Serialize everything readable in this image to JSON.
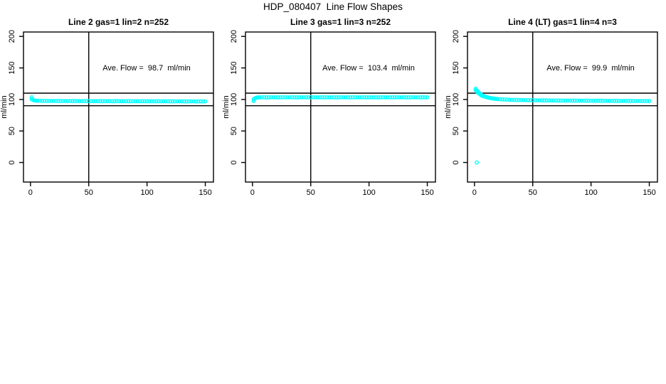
{
  "page": {
    "title": "HDP_080407  Line Flow Shapes"
  },
  "colors": {
    "series": "#00ffff",
    "axis": "#000000",
    "background": "#ffffff"
  },
  "chart_data": [
    {
      "type": "scatter",
      "title": "Line 2 gas=1 lin=2 n=252",
      "annotation": "Ave. Flow =  98.7  ml/min",
      "ave_flow_ml_min": 98.7,
      "n": 252,
      "ylabel": "ml/min",
      "xticks": [
        0,
        50,
        100,
        150
      ],
      "yticks": [
        0,
        50,
        100,
        150,
        200
      ],
      "xlim": [
        -6,
        157
      ],
      "ylim": [
        -31,
        207
      ],
      "ref_hlines": [
        90,
        110
      ],
      "ref_vlines": [
        50
      ],
      "grid": false,
      "points": [
        [
          1,
          103.5
        ],
        [
          1,
          100.5
        ],
        [
          2,
          99.5
        ],
        [
          3,
          98.6
        ],
        [
          4,
          98.3
        ],
        [
          5,
          98.1
        ],
        [
          6,
          98.0
        ],
        [
          8,
          97.9
        ],
        [
          10,
          97.8
        ],
        [
          12,
          97.7
        ],
        [
          14,
          97.8
        ],
        [
          16,
          97.6
        ],
        [
          18,
          97.7
        ],
        [
          20,
          97.6
        ],
        [
          22,
          97.7
        ],
        [
          24,
          97.5
        ],
        [
          26,
          97.6
        ],
        [
          28,
          97.5
        ],
        [
          30,
          97.6
        ],
        [
          32,
          97.5
        ],
        [
          34,
          97.6
        ],
        [
          36,
          97.4
        ],
        [
          38,
          97.5
        ],
        [
          40,
          97.6
        ],
        [
          42,
          97.4
        ],
        [
          44,
          97.5
        ],
        [
          46,
          97.4
        ],
        [
          48,
          97.5
        ],
        [
          50,
          97.4
        ],
        [
          52,
          97.5
        ],
        [
          54,
          97.3
        ],
        [
          56,
          97.4
        ],
        [
          58,
          97.3
        ],
        [
          60,
          97.4
        ],
        [
          62,
          97.3
        ],
        [
          64,
          97.4
        ],
        [
          66,
          97.3
        ],
        [
          68,
          97.4
        ],
        [
          70,
          97.2
        ],
        [
          72,
          97.3
        ],
        [
          74,
          97.4
        ],
        [
          76,
          97.2
        ],
        [
          78,
          97.3
        ],
        [
          80,
          97.2
        ],
        [
          82,
          97.3
        ],
        [
          84,
          97.2
        ],
        [
          86,
          97.3
        ],
        [
          88,
          97.1
        ],
        [
          90,
          97.2
        ],
        [
          92,
          97.3
        ],
        [
          94,
          97.1
        ],
        [
          96,
          97.2
        ],
        [
          98,
          97.1
        ],
        [
          100,
          97.2
        ],
        [
          102,
          97.1
        ],
        [
          104,
          97.2
        ],
        [
          106,
          97.0
        ],
        [
          108,
          97.1
        ],
        [
          110,
          97.2
        ],
        [
          112,
          97.0
        ],
        [
          114,
          97.1
        ],
        [
          116,
          97.0
        ],
        [
          118,
          97.1
        ],
        [
          120,
          97.0
        ],
        [
          122,
          97.1
        ],
        [
          124,
          96.9
        ],
        [
          126,
          97.0
        ],
        [
          128,
          97.1
        ],
        [
          130,
          96.9
        ],
        [
          132,
          97.0
        ],
        [
          134,
          96.9
        ],
        [
          136,
          97.0
        ],
        [
          138,
          96.9
        ],
        [
          140,
          97.0
        ],
        [
          142,
          96.8
        ],
        [
          144,
          96.9
        ],
        [
          146,
          97.0
        ],
        [
          148,
          96.9
        ],
        [
          150,
          96.9
        ]
      ]
    },
    {
      "type": "scatter",
      "title": "Line 3 gas=1 lin=3 n=252",
      "annotation": "Ave. Flow =  103.4  ml/min",
      "ave_flow_ml_min": 103.4,
      "n": 252,
      "ylabel": "ml/min",
      "xticks": [
        0,
        50,
        100,
        150
      ],
      "yticks": [
        0,
        50,
        100,
        150,
        200
      ],
      "xlim": [
        -6,
        157
      ],
      "ylim": [
        -31,
        207
      ],
      "ref_hlines": [
        90,
        110
      ],
      "ref_vlines": [
        50
      ],
      "grid": false,
      "points": [
        [
          1,
          97.5
        ],
        [
          1,
          100.2
        ],
        [
          2,
          101.6
        ],
        [
          3,
          102.6
        ],
        [
          4,
          103.0
        ],
        [
          5,
          103.2
        ],
        [
          6,
          103.3
        ],
        [
          8,
          103.3
        ],
        [
          10,
          103.4
        ],
        [
          12,
          103.3
        ],
        [
          14,
          103.4
        ],
        [
          16,
          103.3
        ],
        [
          18,
          103.4
        ],
        [
          20,
          103.3
        ],
        [
          22,
          103.4
        ],
        [
          24,
          103.3
        ],
        [
          26,
          103.4
        ],
        [
          28,
          103.3
        ],
        [
          30,
          103.4
        ],
        [
          32,
          103.3
        ],
        [
          34,
          103.4
        ],
        [
          36,
          103.3
        ],
        [
          38,
          103.4
        ],
        [
          40,
          103.3
        ],
        [
          42,
          103.4
        ],
        [
          44,
          103.3
        ],
        [
          46,
          103.4
        ],
        [
          48,
          103.3
        ],
        [
          50,
          103.4
        ],
        [
          52,
          103.3
        ],
        [
          54,
          103.4
        ],
        [
          56,
          103.3
        ],
        [
          58,
          103.4
        ],
        [
          60,
          103.3
        ],
        [
          62,
          103.4
        ],
        [
          64,
          103.3
        ],
        [
          66,
          103.4
        ],
        [
          68,
          103.3
        ],
        [
          70,
          103.4
        ],
        [
          72,
          103.3
        ],
        [
          74,
          103.4
        ],
        [
          76,
          103.3
        ],
        [
          78,
          103.4
        ],
        [
          80,
          103.3
        ],
        [
          82,
          103.4
        ],
        [
          84,
          103.3
        ],
        [
          86,
          103.4
        ],
        [
          88,
          103.3
        ],
        [
          90,
          103.4
        ],
        [
          92,
          103.3
        ],
        [
          94,
          103.4
        ],
        [
          96,
          103.3
        ],
        [
          98,
          103.4
        ],
        [
          100,
          103.3
        ],
        [
          102,
          103.4
        ],
        [
          104,
          103.3
        ],
        [
          106,
          103.4
        ],
        [
          108,
          103.3
        ],
        [
          110,
          103.4
        ],
        [
          112,
          103.3
        ],
        [
          114,
          103.4
        ],
        [
          116,
          103.3
        ],
        [
          118,
          103.4
        ],
        [
          120,
          103.3
        ],
        [
          122,
          103.4
        ],
        [
          124,
          103.3
        ],
        [
          126,
          103.4
        ],
        [
          128,
          103.3
        ],
        [
          130,
          103.4
        ],
        [
          132,
          103.3
        ],
        [
          134,
          103.4
        ],
        [
          136,
          103.3
        ],
        [
          138,
          103.4
        ],
        [
          140,
          103.3
        ],
        [
          142,
          103.4
        ],
        [
          144,
          103.3
        ],
        [
          146,
          103.4
        ],
        [
          148,
          103.3
        ],
        [
          150,
          103.4
        ]
      ]
    },
    {
      "type": "scatter",
      "title": "Line 4 (LT) gas=1 lin=4 n=3",
      "annotation": "Ave. Flow =  99.9  ml/min",
      "ave_flow_ml_min": 99.9,
      "n": 3,
      "ylabel": "ml/min",
      "xticks": [
        0,
        50,
        100,
        150
      ],
      "yticks": [
        0,
        50,
        100,
        150,
        200
      ],
      "xlim": [
        -6,
        157
      ],
      "ylim": [
        -31,
        207
      ],
      "ref_hlines": [
        90,
        110
      ],
      "ref_vlines": [
        50
      ],
      "grid": false,
      "points": [
        [
          2,
          0
        ],
        [
          1,
          117
        ],
        [
          1,
          115
        ],
        [
          2,
          114.5
        ],
        [
          2,
          112.5
        ],
        [
          3,
          112.5
        ],
        [
          3,
          110.8
        ],
        [
          4,
          110.5
        ],
        [
          4,
          109.2
        ],
        [
          5,
          108.8
        ],
        [
          5,
          107.6
        ],
        [
          6,
          107.5
        ],
        [
          6,
          106.4
        ],
        [
          7,
          106.3
        ],
        [
          7,
          105.4
        ],
        [
          8,
          105.3
        ],
        [
          9,
          104.5
        ],
        [
          10,
          103.9
        ],
        [
          11,
          103.4
        ],
        [
          12,
          102.9
        ],
        [
          13,
          102.5
        ],
        [
          14,
          102.1
        ],
        [
          15,
          101.8
        ],
        [
          16,
          101.5
        ],
        [
          17,
          101.2
        ],
        [
          18,
          101.0
        ],
        [
          19,
          100.8
        ],
        [
          20,
          100.6
        ],
        [
          22,
          100.3
        ],
        [
          24,
          100.1
        ],
        [
          26,
          99.9
        ],
        [
          28,
          99.7
        ],
        [
          30,
          99.6
        ],
        [
          32,
          99.4
        ],
        [
          34,
          99.3
        ],
        [
          36,
          99.2
        ],
        [
          38,
          99.1
        ],
        [
          40,
          99.0
        ],
        [
          42,
          99.0
        ],
        [
          44,
          98.9
        ],
        [
          46,
          98.8
        ],
        [
          48,
          98.8
        ],
        [
          50,
          98.7
        ],
        [
          52,
          98.7
        ],
        [
          54,
          98.6
        ],
        [
          56,
          98.6
        ],
        [
          58,
          98.5
        ],
        [
          60,
          98.5
        ],
        [
          62,
          98.5
        ],
        [
          64,
          98.4
        ],
        [
          66,
          98.4
        ],
        [
          68,
          98.4
        ],
        [
          70,
          98.3
        ],
        [
          72,
          98.3
        ],
        [
          74,
          98.3
        ],
        [
          76,
          98.2
        ],
        [
          78,
          98.2
        ],
        [
          80,
          98.2
        ],
        [
          82,
          98.2
        ],
        [
          84,
          98.1
        ],
        [
          86,
          98.1
        ],
        [
          88,
          98.1
        ],
        [
          90,
          98.1
        ],
        [
          92,
          98.0
        ],
        [
          94,
          98.0
        ],
        [
          96,
          98.0
        ],
        [
          98,
          98.0
        ],
        [
          100,
          98.0
        ],
        [
          102,
          97.9
        ],
        [
          104,
          97.9
        ],
        [
          106,
          97.9
        ],
        [
          108,
          97.9
        ],
        [
          110,
          97.9
        ],
        [
          112,
          97.8
        ],
        [
          114,
          97.8
        ],
        [
          116,
          97.8
        ],
        [
          118,
          97.8
        ],
        [
          120,
          97.8
        ],
        [
          122,
          97.8
        ],
        [
          124,
          97.7
        ],
        [
          126,
          97.7
        ],
        [
          128,
          97.7
        ],
        [
          130,
          97.7
        ],
        [
          132,
          97.7
        ],
        [
          134,
          97.7
        ],
        [
          136,
          97.6
        ],
        [
          138,
          97.6
        ],
        [
          140,
          97.6
        ],
        [
          142,
          97.6
        ],
        [
          144,
          97.6
        ],
        [
          146,
          97.6
        ],
        [
          148,
          97.5
        ],
        [
          150,
          97.5
        ]
      ]
    }
  ]
}
